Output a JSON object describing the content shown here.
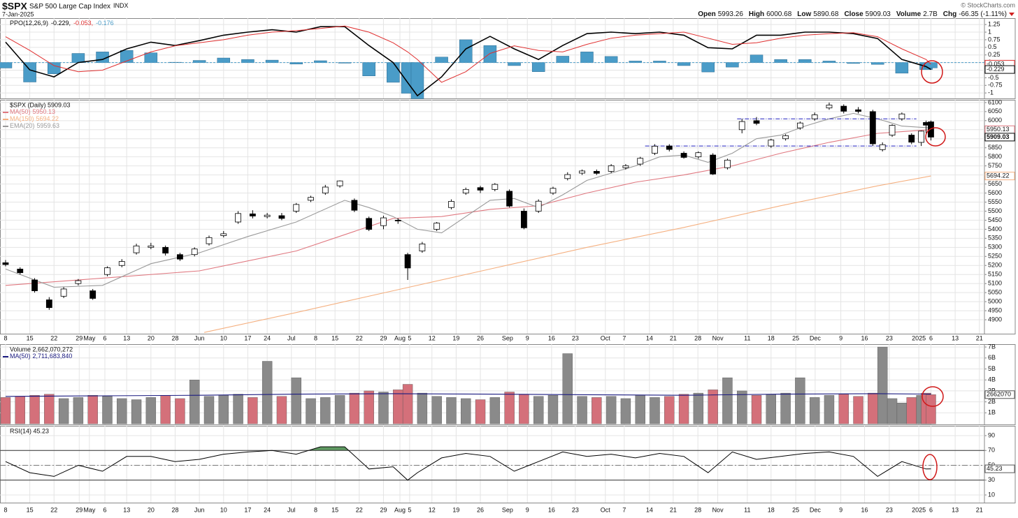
{
  "header": {
    "symbol": "$SPX",
    "name": "S&P 500 Large Cap Index",
    "exchange": "INDX",
    "date": "7-Jan-2025",
    "credit": "© StockCharts.com",
    "stats": [
      {
        "label": "Open",
        "value": "5993.26"
      },
      {
        "label": "High",
        "value": "6000.68"
      },
      {
        "label": "Low",
        "value": "5890.68"
      },
      {
        "label": "Close",
        "value": "5909.03"
      },
      {
        "label": "Volume",
        "value": "2.7B"
      },
      {
        "label": "Chg",
        "value": "-66.35 (-1.11%)"
      }
    ]
  },
  "x_axis": {
    "xlim": [
      -1.15,
      201.9
    ],
    "xticks": [
      {
        "value": 0,
        "label": "8"
      },
      {
        "value": 5,
        "label": "15"
      },
      {
        "value": 10,
        "label": "22"
      },
      {
        "value": 15.2,
        "label": "29"
      },
      {
        "value": 17.3,
        "label": "May"
      },
      {
        "value": 20.5,
        "label": "6"
      },
      {
        "value": 25,
        "label": "13"
      },
      {
        "value": 30,
        "label": "20"
      },
      {
        "value": 35,
        "label": "28"
      },
      {
        "value": 40,
        "label": "Jun"
      },
      {
        "value": 45,
        "label": "10"
      },
      {
        "value": 50,
        "label": "17"
      },
      {
        "value": 54,
        "label": "24"
      },
      {
        "value": 59,
        "label": "Jul"
      },
      {
        "value": 64,
        "label": "8"
      },
      {
        "value": 68,
        "label": "15"
      },
      {
        "value": 73,
        "label": "22"
      },
      {
        "value": 78,
        "label": "29"
      },
      {
        "value": 81.4,
        "label": "Aug"
      },
      {
        "value": 83.4,
        "label": "5"
      },
      {
        "value": 88,
        "label": "12"
      },
      {
        "value": 93,
        "label": "19"
      },
      {
        "value": 98,
        "label": "26"
      },
      {
        "value": 103.6,
        "label": "Sep"
      },
      {
        "value": 107.7,
        "label": "9"
      },
      {
        "value": 112.7,
        "label": "16"
      },
      {
        "value": 117.6,
        "label": "23"
      },
      {
        "value": 123.8,
        "label": "Oct"
      },
      {
        "value": 127.7,
        "label": "7"
      },
      {
        "value": 132.9,
        "label": "14"
      },
      {
        "value": 137.8,
        "label": "21"
      },
      {
        "value": 142.9,
        "label": "28"
      },
      {
        "value": 147,
        "label": "Nov"
      },
      {
        "value": 153.1,
        "label": "11"
      },
      {
        "value": 158,
        "label": "18"
      },
      {
        "value": 163.1,
        "label": "25"
      },
      {
        "value": 167.1,
        "label": "Dec"
      },
      {
        "value": 172.4,
        "label": "9"
      },
      {
        "value": 177.3,
        "label": "16"
      },
      {
        "value": 182.4,
        "label": "23"
      },
      {
        "value": 188.5,
        "label": "2025"
      },
      {
        "value": 191,
        "label": "6"
      },
      {
        "value": 196,
        "label": "13"
      },
      {
        "value": 201,
        "label": "21"
      }
    ]
  },
  "chart_data": [
    {
      "type": "ppo",
      "title": "PPO(12,26,9)",
      "ylim": [
        -1.18,
        1.46
      ],
      "yticks": [
        1.25,
        1,
        0.75,
        0.5,
        0.25,
        0,
        -0.25,
        -0.5,
        -0.75,
        -1
      ],
      "x": [
        0,
        5,
        10,
        15,
        20,
        25,
        30,
        35,
        40,
        45,
        50,
        55,
        60,
        65,
        70,
        75,
        80,
        83,
        85,
        90,
        95,
        100,
        105,
        110,
        115,
        120,
        125,
        130,
        135,
        140,
        145,
        150,
        155,
        160,
        165,
        170,
        175,
        180,
        185,
        190,
        191
      ],
      "series": [
        {
          "name": "PPO",
          "color": "#000000",
          "legend_value": "-0.229,",
          "values": [
            0.67,
            -0.24,
            -0.47,
            0,
            0.1,
            0.45,
            0.67,
            0.56,
            0.72,
            0.9,
            1.0,
            1.08,
            1.0,
            1.18,
            1.18,
            0.56,
            0,
            -0.66,
            -1.09,
            -0.47,
            0.45,
            0.86,
            0.45,
            0.1,
            0.56,
            0.95,
            1.0,
            0.95,
            1.0,
            0.9,
            0.49,
            0.45,
            0.9,
            0.9,
            1.0,
            1.0,
            0.95,
            0.79,
            0.1,
            -0.13,
            -0.229
          ]
        },
        {
          "name": "Signal",
          "color": "#e03030",
          "legend_value": "-0.053,",
          "values": [
            0.85,
            0.4,
            -0.1,
            -0.3,
            -0.25,
            0.05,
            0.35,
            0.55,
            0.65,
            0.75,
            0.9,
            1.0,
            1.05,
            1.12,
            1.2,
            1.0,
            0.65,
            0.35,
            0.1,
            -0.65,
            -0.3,
            0.3,
            0.55,
            0.4,
            0.35,
            0.6,
            0.8,
            0.9,
            0.95,
            1.0,
            0.8,
            0.6,
            0.65,
            0.8,
            0.9,
            0.95,
            0.98,
            0.85,
            0.45,
            0.1,
            -0.053
          ]
        },
        {
          "name": "Histogram",
          "color": "#4a9cc8",
          "legend_value": "-0.176",
          "histogram": true,
          "values": [
            -0.18,
            -0.64,
            -0.37,
            0.3,
            0.35,
            0.4,
            0.32,
            0.01,
            0.07,
            0.15,
            0.1,
            0.08,
            -0.05,
            0.06,
            -0.02,
            -0.44,
            -0.65,
            -1.01,
            -1.19,
            0.18,
            0.75,
            0.56,
            -0.1,
            -0.3,
            0.21,
            0.35,
            0.2,
            0.05,
            0.05,
            -0.1,
            -0.31,
            -0.15,
            0.25,
            0.1,
            0.1,
            0.05,
            -0.03,
            -0.06,
            -0.35,
            -0.23,
            -0.176
          ]
        }
      ]
    },
    {
      "type": "candlestick",
      "title": "$SPX (Daily) 5909.03",
      "ylim": [
        4823,
        6115
      ],
      "yticks": [
        4900,
        4950,
        5000,
        5050,
        5100,
        5150,
        5200,
        5250,
        5300,
        5350,
        5400,
        5450,
        5500,
        5550,
        5600,
        5650,
        5700,
        5750,
        5800,
        5850,
        5900,
        5950,
        6000,
        6050,
        6100
      ],
      "up_color": "#ffffff",
      "down_color": "#000000",
      "x": [
        0,
        3,
        6,
        9,
        12,
        15,
        18,
        21,
        24,
        27,
        30,
        33,
        36,
        39,
        42,
        45,
        48,
        51,
        54,
        57,
        60,
        63,
        66,
        69,
        72,
        75,
        78,
        81,
        83,
        86,
        89,
        92,
        95,
        98,
        101,
        104,
        107,
        110,
        113,
        116,
        119,
        122,
        125,
        128,
        131,
        134,
        137,
        140,
        143,
        146,
        149,
        152,
        155,
        158,
        161,
        164,
        167,
        170,
        173,
        176,
        179,
        181,
        183,
        185,
        187,
        189,
        190,
        191
      ],
      "open": [
        5215,
        5180,
        5120,
        5010,
        5030,
        5100,
        5060,
        5150,
        5200,
        5270,
        5300,
        5300,
        5260,
        5260,
        5320,
        5365,
        5440,
        5485,
        5470,
        5475,
        5500,
        5560,
        5600,
        5640,
        5560,
        5460,
        5420,
        5450,
        5260,
        5280,
        5400,
        5520,
        5600,
        5630,
        5620,
        5610,
        5500,
        5500,
        5600,
        5680,
        5710,
        5720,
        5720,
        5740,
        5760,
        5820,
        5860,
        5820,
        5800,
        5810,
        5740,
        5950,
        6000,
        5860,
        5900,
        5960,
        6010,
        6070,
        6080,
        6060,
        6050,
        5840,
        5920,
        6010,
        5920,
        5880,
        5990,
        5993.26
      ],
      "high": [
        5230,
        5190,
        5130,
        5025,
        5080,
        5125,
        5070,
        5195,
        5235,
        5320,
        5325,
        5310,
        5270,
        5300,
        5365,
        5390,
        5500,
        5505,
        5490,
        5490,
        5545,
        5585,
        5645,
        5670,
        5570,
        5470,
        5475,
        5460,
        5270,
        5330,
        5440,
        5565,
        5630,
        5640,
        5655,
        5620,
        5515,
        5565,
        5635,
        5715,
        5730,
        5730,
        5760,
        5760,
        5800,
        5870,
        5870,
        5830,
        5830,
        5820,
        5790,
        6010,
        6020,
        5900,
        5925,
        5995,
        6045,
        6100,
        6090,
        6075,
        6060,
        5880,
        5980,
        6045,
        5930,
        5945,
        6000,
        6000.68
      ],
      "low": [
        5195,
        5150,
        5050,
        4955,
        5020,
        5090,
        5010,
        5140,
        5190,
        5260,
        5290,
        5255,
        5225,
        5250,
        5310,
        5355,
        5430,
        5460,
        5460,
        5450,
        5490,
        5550,
        5590,
        5630,
        5495,
        5390,
        5400,
        5430,
        5120,
        5270,
        5390,
        5510,
        5590,
        5600,
        5610,
        5520,
        5400,
        5490,
        5590,
        5670,
        5700,
        5700,
        5710,
        5730,
        5750,
        5810,
        5830,
        5790,
        5790,
        5700,
        5730,
        5930,
        5975,
        5850,
        5890,
        5950,
        6000,
        6060,
        6040,
        6040,
        5860,
        5830,
        5910,
        6000,
        5870,
        5860,
        5930,
        5890.68
      ],
      "close": [
        5205,
        5160,
        5060,
        4967,
        5070,
        5116,
        5018,
        5187,
        5222,
        5308,
        5308,
        5268,
        5235,
        5291,
        5354,
        5375,
        5487,
        5473,
        5478,
        5460,
        5537,
        5576,
        5633,
        5667,
        5505,
        5399,
        5463,
        5446,
        5186,
        5319,
        5434,
        5554,
        5620,
        5616,
        5648,
        5528,
        5408,
        5555,
        5626,
        5702,
        5722,
        5709,
        5751,
        5751,
        5792,
        5859,
        5841,
        5797,
        5823,
        5705,
        5782,
        5995,
        5985,
        5893,
        5917,
        5987,
        6032,
        6086,
        6052,
        6051,
        5872,
        5867,
        5974,
        6037,
        5881,
        5942,
        5975,
        5909.03
      ],
      "overlays": [
        {
          "name": "MA(50)",
          "color": "#e07880",
          "x": [
            0,
            20,
            40,
            60,
            80,
            90,
            100,
            110,
            120,
            130,
            140,
            150,
            160,
            170,
            180,
            191
          ],
          "values": [
            5090,
            5130,
            5170,
            5280,
            5460,
            5470,
            5510,
            5530,
            5600,
            5660,
            5700,
            5750,
            5820,
            5880,
            5930,
            5950.13
          ]
        },
        {
          "name": "MA(150)",
          "color": "#f5b080",
          "x": [
            41,
            60,
            80,
            100,
            120,
            140,
            160,
            180,
            191
          ],
          "values": [
            4830,
            4940,
            5060,
            5180,
            5300,
            5410,
            5530,
            5640,
            5694.22
          ]
        },
        {
          "name": "EMA(20)",
          "color": "#999999",
          "x": [
            0,
            10,
            20,
            30,
            40,
            50,
            60,
            70,
            75,
            80,
            85,
            90,
            95,
            100,
            105,
            110,
            115,
            120,
            125,
            130,
            135,
            140,
            145,
            150,
            155,
            160,
            165,
            170,
            175,
            180,
            185,
            191
          ],
          "values": [
            5180,
            5080,
            5090,
            5210,
            5270,
            5360,
            5440,
            5560,
            5520,
            5470,
            5400,
            5380,
            5470,
            5560,
            5570,
            5520,
            5590,
            5670,
            5710,
            5750,
            5800,
            5810,
            5770,
            5820,
            5900,
            5920,
            5970,
            6010,
            6040,
            6010,
            5970,
            5959.63
          ]
        }
      ],
      "hlines": [
        {
          "value": 6010,
          "from": 151,
          "to": 188,
          "color": "#2020c0"
        },
        {
          "value": 5860,
          "from": 132,
          "to": 188,
          "color": "#2020c0"
        }
      ]
    },
    {
      "type": "volume",
      "title": "Volume 2,662,070,272",
      "ylim": [
        -0.06,
        7.26
      ],
      "last_label": "2662070",
      "yticks": [
        {
          "value": 1,
          "label": "1B"
        },
        {
          "value": 2,
          "label": "2B"
        },
        {
          "value": 3,
          "label": "3B"
        },
        {
          "value": 4,
          "label": "4B"
        },
        {
          "value": 5,
          "label": "5B"
        },
        {
          "value": 6,
          "label": "6B"
        },
        {
          "value": 7,
          "label": "7B"
        }
      ],
      "up_color": "#8a8a8a",
      "down_color": "#d4707a",
      "values": [
        2.4,
        2.5,
        2.6,
        2.7,
        2.3,
        2.4,
        2.6,
        2.5,
        2.3,
        2.2,
        2.4,
        2.6,
        2.3,
        4.0,
        2.5,
        2.6,
        2.7,
        2.4,
        5.7,
        2.5,
        4.2,
        2.3,
        2.4,
        2.6,
        2.8,
        3.0,
        2.9,
        3.1,
        3.6,
        2.8,
        2.5,
        2.4,
        2.3,
        2.2,
        2.4,
        2.9,
        2.7,
        2.5,
        2.6,
        6.4,
        2.5,
        2.4,
        2.5,
        2.3,
        2.6,
        2.4,
        2.5,
        2.7,
        2.8,
        3.1,
        4.2,
        3.0,
        2.6,
        2.7,
        2.8,
        4.2,
        2.4,
        2.6,
        2.7,
        2.5,
        2.8,
        7.0,
        2.3,
        1.9,
        2.4,
        2.6,
        2.8,
        2.66
      ],
      "overlays": [
        {
          "name": "MA(50)",
          "color": "#1a1a80",
          "legend_value": "2,711,683,840",
          "x": [
            0,
            20,
            40,
            60,
            80,
            100,
            120,
            140,
            160,
            180,
            191
          ],
          "values": [
            2.5,
            2.55,
            2.6,
            2.7,
            2.75,
            2.7,
            2.65,
            2.6,
            2.7,
            2.75,
            2.71
          ]
        }
      ]
    },
    {
      "type": "rsi",
      "title": "RSI(14) 45.23",
      "ylim": [
        -0.35,
        103.2
      ],
      "yticks": [
        90,
        70,
        50,
        30,
        10
      ],
      "overbought": 70,
      "midline": 50,
      "oversold": 30,
      "color": "#000000",
      "fill_color": "#5f9a62",
      "x": [
        0,
        5,
        10,
        15,
        20,
        25,
        30,
        35,
        40,
        45,
        50,
        55,
        60,
        65,
        70,
        75,
        80,
        83,
        85,
        90,
        95,
        100,
        105,
        110,
        115,
        120,
        125,
        130,
        135,
        140,
        145,
        150,
        155,
        160,
        165,
        170,
        175,
        180,
        185,
        190,
        191
      ],
      "values": [
        55,
        40,
        35,
        50,
        42,
        62,
        62,
        55,
        58,
        65,
        68,
        70,
        65,
        75,
        75,
        45,
        48,
        30,
        40,
        60,
        66,
        62,
        42,
        55,
        68,
        62,
        65,
        60,
        66,
        62,
        40,
        68,
        58,
        62,
        66,
        68,
        62,
        35,
        55,
        45,
        45.23
      ]
    }
  ]
}
